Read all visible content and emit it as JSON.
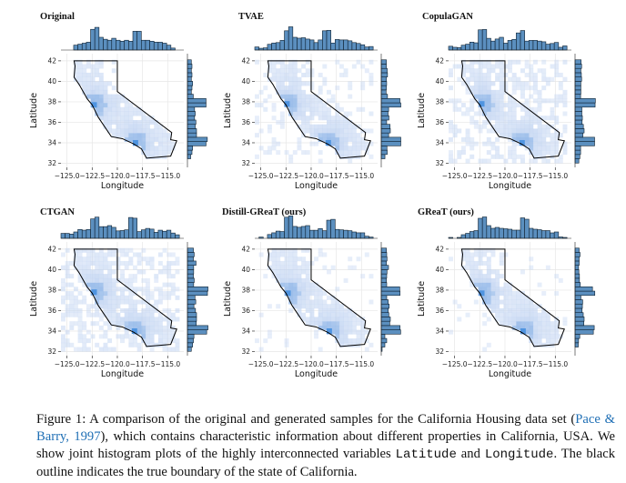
{
  "colors": {
    "hist_fill": "#5b8fbf",
    "hist_edge": "#0e2030",
    "heat_light": "#c3d5f2",
    "heat_mid": "#9bbdea",
    "heat_dark": "#4f94e0",
    "outline": "#000000",
    "link": "#1f6fb5",
    "grid": "#e6e6e6"
  },
  "chart_data": [
    {
      "type": "heatmap",
      "title": "Original",
      "xlabel": "Longitude",
      "ylabel": "Latitude",
      "xticks": [
        "−125.0",
        "−122.5",
        "−120.0",
        "−117.5",
        "−115.0"
      ],
      "yticks": [
        "32",
        "34",
        "36",
        "38",
        "40",
        "42"
      ],
      "xlim": [
        -125.6,
        -113.4
      ],
      "ylim": [
        31.6,
        42.7
      ],
      "marginal_hists": true,
      "outline": "state boundary of California",
      "spread": 0.0,
      "hotspots": [
        [
          -122.3,
          37.7
        ],
        [
          -118.2,
          34.0
        ]
      ]
    },
    {
      "type": "heatmap",
      "title": "TVAE",
      "xlabel": "Longitude",
      "ylabel": "Latitude",
      "xticks": [
        "−125.0",
        "−122.5",
        "−120.0",
        "−117.5",
        "−115.0"
      ],
      "yticks": [
        "32",
        "34",
        "36",
        "38",
        "40",
        "42"
      ],
      "xlim": [
        -125.6,
        -113.4
      ],
      "ylim": [
        31.6,
        42.7
      ],
      "marginal_hists": true,
      "outline": "state boundary of California",
      "spread": 0.4,
      "hotspots": [
        [
          -122.4,
          37.8
        ],
        [
          -118.3,
          34.0
        ]
      ]
    },
    {
      "type": "heatmap",
      "title": "CopulaGAN",
      "xlabel": "Longitude",
      "ylabel": "Latitude",
      "xticks": [
        "−125.0",
        "−122.5",
        "−120.0",
        "−117.5",
        "−115.0"
      ],
      "yticks": [
        "32",
        "34",
        "36",
        "38",
        "40",
        "42"
      ],
      "xlim": [
        -125.6,
        -113.4
      ],
      "ylim": [
        31.6,
        42.7
      ],
      "marginal_hists": true,
      "outline": "state boundary of California",
      "spread": 0.85,
      "hotspots": [
        [
          -122.3,
          37.8
        ],
        [
          -118.3,
          34.0
        ]
      ]
    },
    {
      "type": "heatmap",
      "title": "CTGAN",
      "xlabel": "Longitude",
      "ylabel": "Latitude",
      "xticks": [
        "−125.0",
        "−122.5",
        "−120.0",
        "−117.5",
        "−115.0"
      ],
      "yticks": [
        "32",
        "34",
        "36",
        "38",
        "40",
        "42"
      ],
      "xlim": [
        -125.6,
        -113.4
      ],
      "ylim": [
        31.6,
        42.7
      ],
      "marginal_hists": true,
      "outline": "state boundary of California",
      "spread": 0.95,
      "hotspots": [
        [
          -122.3,
          37.8
        ],
        [
          -118.3,
          34.0
        ]
      ]
    },
    {
      "type": "heatmap",
      "title": "Distill-GReaT (ours)",
      "xlabel": "Longitude",
      "ylabel": "Latitude",
      "xticks": [
        "−125.0",
        "−122.5",
        "−120.0",
        "−117.5",
        "−115.0"
      ],
      "yticks": [
        "32",
        "34",
        "36",
        "38",
        "40",
        "42"
      ],
      "xlim": [
        -125.6,
        -113.4
      ],
      "ylim": [
        31.6,
        42.7
      ],
      "marginal_hists": true,
      "outline": "state boundary of California",
      "spread": 0.15,
      "hotspots": [
        [
          -122.3,
          37.7
        ],
        [
          -118.2,
          34.0
        ]
      ]
    },
    {
      "type": "heatmap",
      "title": "GReaT (ours)",
      "xlabel": "Longitude",
      "ylabel": "Latitude",
      "xticks": [
        "−125.0",
        "−122.5",
        "−120.0",
        "−117.5",
        "−115.0"
      ],
      "yticks": [
        "32",
        "34",
        "36",
        "38",
        "40",
        "42"
      ],
      "xlim": [
        -125.6,
        -113.4
      ],
      "ylim": [
        31.6,
        42.7
      ],
      "marginal_hists": true,
      "outline": "state boundary of California",
      "spread": 0.1,
      "hotspots": [
        [
          -122.3,
          37.7
        ],
        [
          -118.2,
          34.0
        ]
      ]
    }
  ],
  "caption": {
    "label": "Figure 1:",
    "text_1": " A comparison of the original and generated samples for the California Housing data set (",
    "cite": "Pace & Barry, 1997",
    "text_2": "), which contains characteristic information about different properties in California, USA. We show joint histogram plots of the highly interconnected variables ",
    "var_1": "Latitude",
    "text_3": " and ",
    "var_2": "Longitude",
    "text_4": ". The black outline indicates the true boundary of the state of California."
  }
}
